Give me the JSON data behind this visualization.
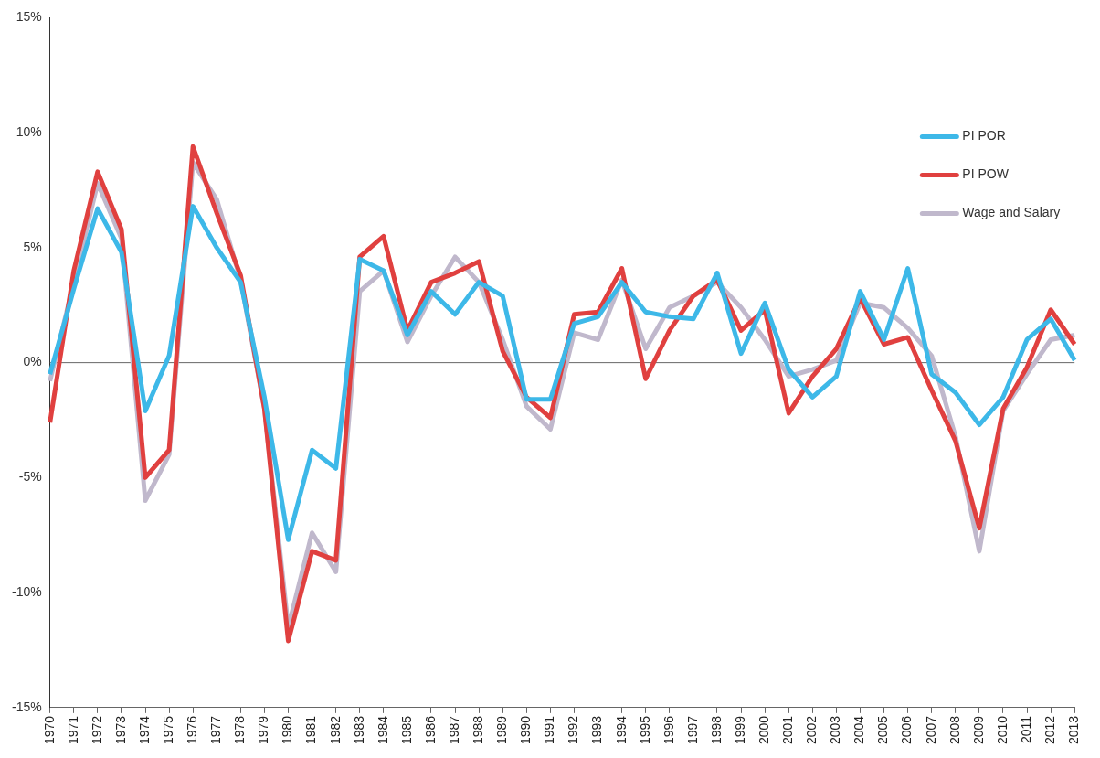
{
  "chart_data": {
    "type": "line",
    "categories": [
      "1970",
      "1971",
      "1972",
      "1973",
      "1974",
      "1975",
      "1976",
      "1977",
      "1978",
      "1979",
      "1980",
      "1981",
      "1982",
      "1983",
      "1984",
      "1985",
      "1986",
      "1987",
      "1988",
      "1989",
      "1990",
      "1991",
      "1992",
      "1993",
      "1994",
      "1995",
      "1996",
      "1997",
      "1998",
      "1999",
      "2000",
      "2001",
      "2002",
      "2003",
      "2004",
      "2005",
      "2006",
      "2007",
      "2008",
      "2009",
      "2010",
      "2011",
      "2012",
      "2013"
    ],
    "series": [
      {
        "name": "PI POR",
        "color": "#3db8e8",
        "values": [
          -0.5,
          3.2,
          6.7,
          4.8,
          -2.1,
          0.3,
          6.8,
          5.0,
          3.5,
          -1.5,
          -7.7,
          -3.8,
          -4.6,
          4.5,
          4.0,
          1.2,
          3.1,
          2.1,
          3.5,
          2.9,
          -1.6,
          -1.6,
          1.7,
          2.0,
          3.5,
          2.2,
          2.0,
          1.9,
          3.9,
          0.4,
          2.6,
          -0.3,
          -1.5,
          -0.6,
          3.1,
          1.0,
          4.1,
          -0.5,
          -1.3,
          -2.7,
          -1.5,
          1.0,
          1.9,
          0.1
        ]
      },
      {
        "name": "PI POW",
        "color": "#e0403f",
        "values": [
          -2.6,
          4.0,
          8.3,
          5.8,
          -5.0,
          -3.8,
          9.4,
          6.5,
          3.8,
          -2.0,
          -12.1,
          -8.2,
          -8.6,
          4.6,
          5.5,
          1.4,
          3.5,
          3.9,
          4.4,
          0.5,
          -1.5,
          -2.4,
          2.1,
          2.2,
          4.1,
          -0.7,
          1.4,
          2.9,
          3.6,
          1.4,
          2.3,
          -2.2,
          -0.6,
          0.6,
          2.8,
          0.8,
          1.1,
          -1.2,
          -3.4,
          -7.2,
          -2.0,
          -0.2,
          2.3,
          0.8
        ]
      },
      {
        "name": "Wage and Salary",
        "color": "#c0b8cc",
        "values": [
          -0.8,
          3.5,
          7.8,
          5.4,
          -6.0,
          -4.0,
          8.7,
          7.1,
          3.6,
          -2.0,
          -11.5,
          -7.4,
          -9.1,
          3.1,
          4.0,
          0.9,
          2.9,
          4.6,
          3.5,
          1.0,
          -1.9,
          -2.9,
          1.3,
          1.0,
          3.6,
          0.6,
          2.4,
          2.9,
          3.5,
          2.4,
          1.0,
          -0.6,
          -0.3,
          0.1,
          2.6,
          2.4,
          1.5,
          0.3,
          -3.2,
          -8.2,
          -2.1,
          -0.5,
          1.0,
          1.2
        ]
      }
    ],
    "ylim": [
      -15,
      15
    ],
    "yticks": [
      {
        "value": -15,
        "label": "-15%"
      },
      {
        "value": -10,
        "label": "-10%"
      },
      {
        "value": -5,
        "label": "-5%"
      },
      {
        "value": 0,
        "label": "0%"
      },
      {
        "value": 5,
        "label": "5%"
      },
      {
        "value": 10,
        "label": "10%"
      },
      {
        "value": 15,
        "label": "15%"
      }
    ],
    "grid": false,
    "ref_lines": [
      {
        "axis": "y",
        "value": 0,
        "color": "#666666"
      }
    ],
    "legend": "top right",
    "marker": "none",
    "line_style": "solid"
  }
}
